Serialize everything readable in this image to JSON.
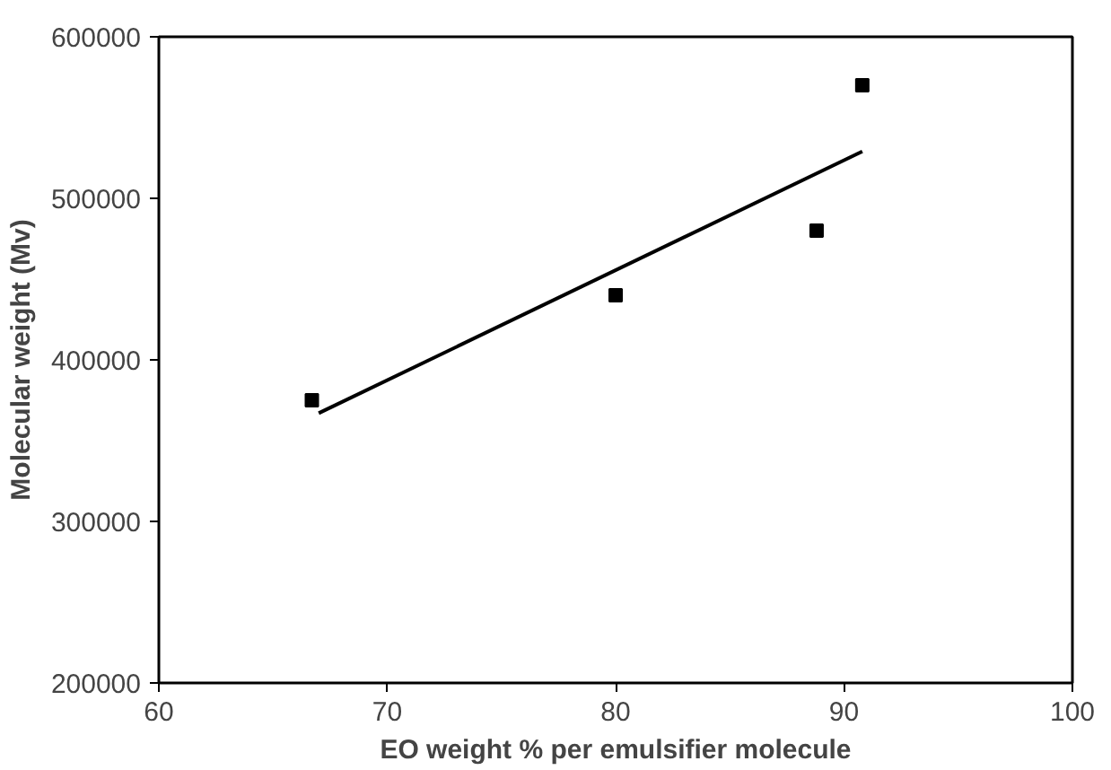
{
  "chart_data": {
    "type": "scatter",
    "xlabel": "EO weight % per emulsifier molecule",
    "ylabel": "Molecular weight (Mv)",
    "xlim": [
      60,
      100
    ],
    "xticks": [
      60,
      70,
      80,
      90,
      100
    ],
    "ylim": [
      200000,
      600000
    ],
    "yticks": [
      200000,
      300000,
      400000,
      500000,
      600000
    ],
    "grid": false,
    "marker": "square",
    "series": [
      {
        "color": "#000000",
        "x": [
          66.7,
          80,
          88.8,
          90.8
        ],
        "values": [
          375000,
          440000,
          480000,
          570000
        ]
      },
      {
        "type": "line",
        "color": "#000000",
        "x": [
          67,
          90.8
        ],
        "values": [
          367000,
          529000
        ],
        "marker": "none",
        "line_style": "solid"
      }
    ]
  }
}
